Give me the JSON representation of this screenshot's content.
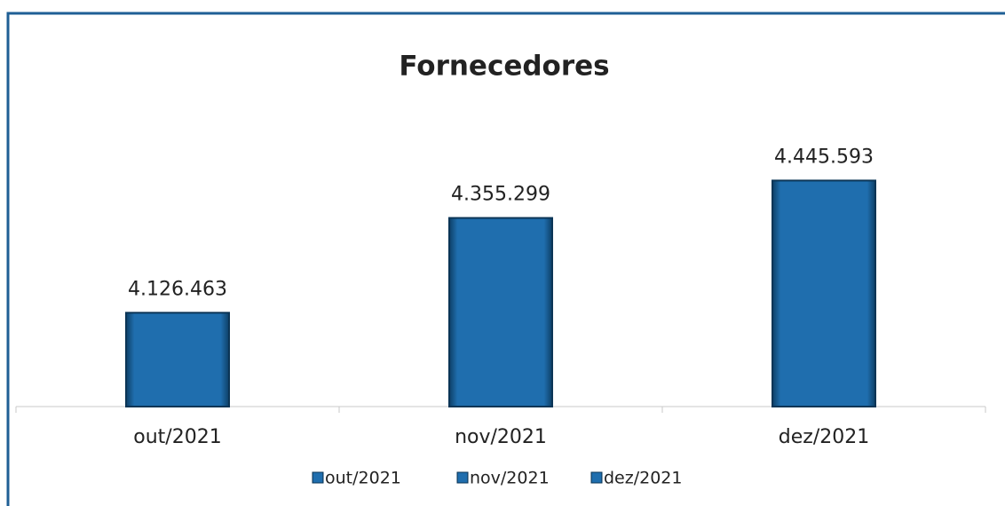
{
  "chart_data": {
    "type": "bar",
    "title": "Fornecedores",
    "categories": [
      "out/2021",
      "nov/2021",
      "dez/2021"
    ],
    "values": [
      4126463,
      4355299,
      4445593
    ],
    "value_labels": [
      "4.126.463",
      "4.355.299",
      "4.445.593"
    ],
    "color": "#1f6eae",
    "ylim": [
      3900000,
      4500000
    ],
    "legend": "bottom"
  }
}
